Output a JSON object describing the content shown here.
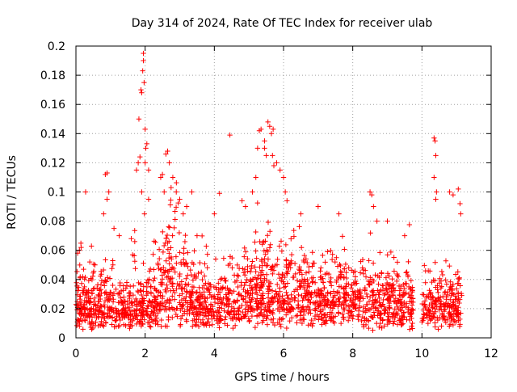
{
  "chart_data": {
    "type": "scatter",
    "title": "Day 314 of 2024, Rate Of TEC Index for receiver ulab",
    "xlabel": "GPS time / hours",
    "ylabel": "ROTI / TECUs",
    "xlim": [
      0,
      12
    ],
    "ylim": [
      0,
      0.2
    ],
    "xticks": [
      0,
      2,
      4,
      6,
      8,
      10,
      12
    ],
    "yticks": [
      0,
      0.02,
      0.04,
      0.06,
      0.08,
      0.1,
      0.12,
      0.14,
      0.16,
      0.18,
      0.2
    ],
    "xtick_labels": [
      "0",
      "2",
      "4",
      "6",
      "8",
      "10",
      "12"
    ],
    "ytick_labels": [
      "0",
      "0.02",
      "0.04",
      "0.06",
      "0.08",
      "0.1",
      "0.12",
      "0.14",
      "0.16",
      "0.18",
      "0.2"
    ],
    "grid": true,
    "marker": "+",
    "color": "#ff0000",
    "series": [
      {
        "name": "ROTI",
        "gap": [
          9.75,
          10.0
        ],
        "x_end": 11.15,
        "points": [
          [
            0.05,
            0.058
          ],
          [
            0.1,
            0.06
          ],
          [
            0.15,
            0.062
          ],
          [
            0.28,
            0.1
          ],
          [
            0.4,
            0.052
          ],
          [
            0.55,
            0.05
          ],
          [
            0.8,
            0.085
          ],
          [
            0.85,
            0.112
          ],
          [
            0.9,
            0.113
          ],
          [
            0.95,
            0.1
          ],
          [
            0.9,
            0.095
          ],
          [
            1.1,
            0.075
          ],
          [
            1.25,
            0.07
          ],
          [
            1.6,
            0.068
          ],
          [
            1.7,
            0.066
          ],
          [
            1.75,
            0.115
          ],
          [
            1.8,
            0.12
          ],
          [
            1.82,
            0.15
          ],
          [
            1.85,
            0.124
          ],
          [
            1.88,
            0.17
          ],
          [
            1.9,
            0.168
          ],
          [
            1.95,
            0.195
          ],
          [
            1.95,
            0.19
          ],
          [
            1.93,
            0.183
          ],
          [
            1.97,
            0.175
          ],
          [
            2.0,
            0.143
          ],
          [
            2.05,
            0.133
          ],
          [
            2.02,
            0.13
          ],
          [
            2.0,
            0.12
          ],
          [
            1.9,
            0.1
          ],
          [
            2.1,
            0.115
          ],
          [
            2.1,
            0.095
          ],
          [
            1.98,
            0.085
          ],
          [
            2.45,
            0.11
          ],
          [
            2.5,
            0.112
          ],
          [
            2.6,
            0.126
          ],
          [
            2.65,
            0.128
          ],
          [
            2.7,
            0.12
          ],
          [
            2.55,
            0.1
          ],
          [
            2.8,
            0.11
          ],
          [
            2.75,
            0.103
          ],
          [
            2.9,
            0.1
          ],
          [
            3.0,
            0.095
          ],
          [
            3.2,
            0.09
          ],
          [
            3.1,
            0.085
          ],
          [
            3.35,
            0.1
          ],
          [
            3.5,
            0.07
          ],
          [
            4.0,
            0.085
          ],
          [
            4.15,
            0.099
          ],
          [
            4.45,
            0.139
          ],
          [
            4.8,
            0.094
          ],
          [
            4.9,
            0.09
          ],
          [
            5.1,
            0.1
          ],
          [
            5.2,
            0.11
          ],
          [
            5.25,
            0.13
          ],
          [
            5.3,
            0.142
          ],
          [
            5.35,
            0.143
          ],
          [
            5.45,
            0.13
          ],
          [
            5.45,
            0.135
          ],
          [
            5.5,
            0.125
          ],
          [
            5.55,
            0.148
          ],
          [
            5.6,
            0.145
          ],
          [
            5.65,
            0.14
          ],
          [
            5.7,
            0.143
          ],
          [
            5.68,
            0.125
          ],
          [
            5.72,
            0.118
          ],
          [
            5.8,
            0.12
          ],
          [
            5.9,
            0.115
          ],
          [
            6.0,
            0.11
          ],
          [
            6.05,
            0.1
          ],
          [
            6.1,
            0.094
          ],
          [
            6.5,
            0.085
          ],
          [
            7.0,
            0.09
          ],
          [
            7.6,
            0.085
          ],
          [
            8.5,
            0.1
          ],
          [
            8.55,
            0.098
          ],
          [
            8.6,
            0.09
          ],
          [
            8.7,
            0.08
          ],
          [
            9.0,
            0.08
          ],
          [
            9.5,
            0.07
          ],
          [
            10.35,
            0.137
          ],
          [
            10.38,
            0.135
          ],
          [
            10.4,
            0.125
          ],
          [
            10.35,
            0.11
          ],
          [
            10.42,
            0.1
          ],
          [
            10.4,
            0.095
          ],
          [
            10.8,
            0.1
          ],
          [
            10.9,
            0.098
          ],
          [
            11.05,
            0.102
          ],
          [
            11.1,
            0.092
          ],
          [
            11.12,
            0.085
          ]
        ]
      }
    ]
  }
}
